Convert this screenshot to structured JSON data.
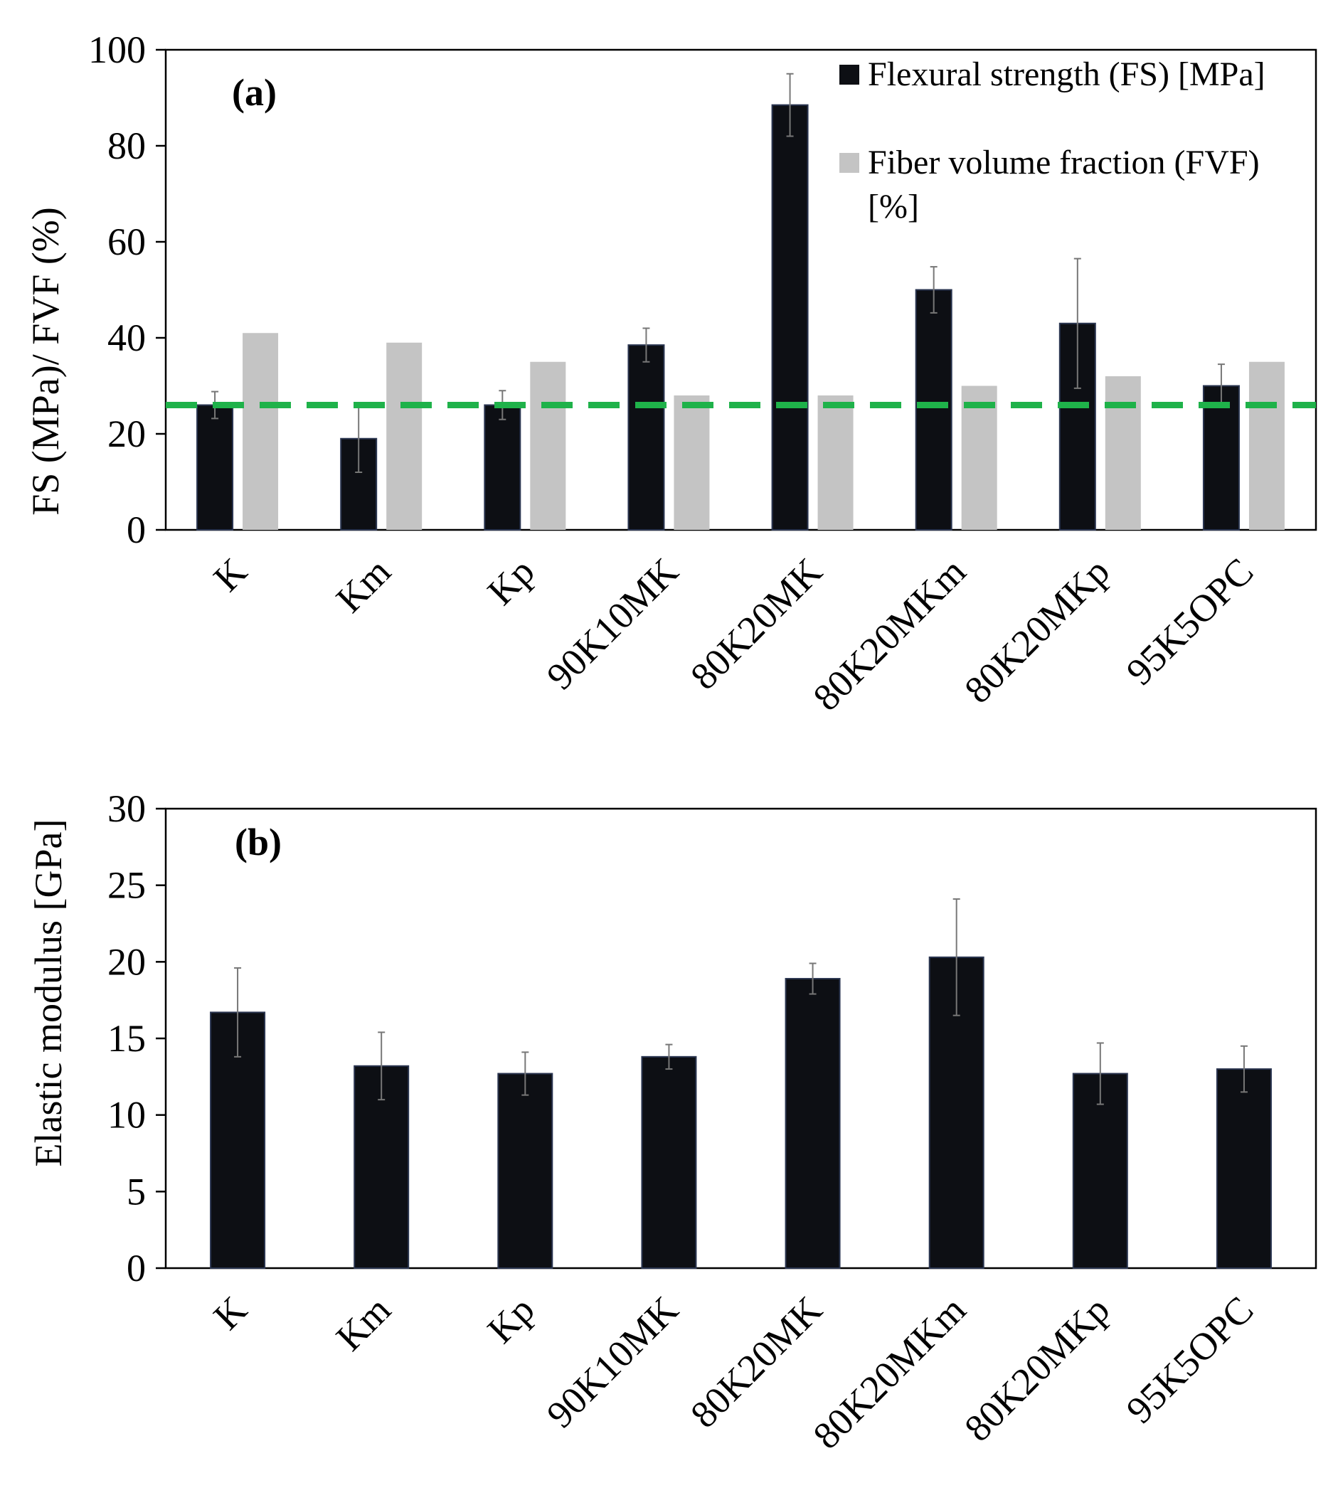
{
  "colors": {
    "fs_bar": "#0d0f14",
    "fvf_bar": "#c4c4c4",
    "threshold_line": "#1fb24a",
    "axis": "#000000",
    "error_bar": "#777777"
  },
  "chart_data": [
    {
      "type": "bar",
      "panel_label": "(a)",
      "ylabel": "FS (MPa)/ FVF (%)",
      "ylim": [
        0,
        100
      ],
      "yticks": [
        0,
        20,
        40,
        60,
        80,
        100
      ],
      "categories": [
        "K",
        "Km",
        "Kp",
        "90K10MK",
        "80K20MK",
        "80K20MKm",
        "80K20MKp",
        "95K5OPC"
      ],
      "series": [
        {
          "name": "Flexural strength (FS) [MPa]",
          "values": [
            26,
            19,
            26,
            38.5,
            88.5,
            50,
            43,
            30
          ],
          "errors": [
            2.8,
            7.0,
            3.0,
            3.5,
            6.5,
            4.8,
            13.5,
            4.5
          ]
        },
        {
          "name": "Fiber volume fraction (FVF) [%]",
          "name_line1": "Fiber volume fraction (FVF)",
          "name_line2": "[%]",
          "values": [
            41,
            39,
            35,
            28,
            28,
            30,
            32,
            35
          ]
        }
      ],
      "reference_line": 26,
      "legend_position": "top-right"
    },
    {
      "type": "bar",
      "panel_label": "(b)",
      "ylabel": "Elastic modulus [GPa]",
      "ylim": [
        0,
        30
      ],
      "yticks": [
        0,
        5,
        10,
        15,
        20,
        25,
        30
      ],
      "categories": [
        "K",
        "Km",
        "Kp",
        "90K10MK",
        "80K20MK",
        "80K20MKm",
        "80K20MKp",
        "95K5OPC"
      ],
      "series": [
        {
          "name": "Elastic modulus",
          "values": [
            16.7,
            13.2,
            12.7,
            13.8,
            18.9,
            20.3,
            12.7,
            13.0
          ],
          "errors": [
            2.9,
            2.2,
            1.4,
            0.8,
            1.0,
            3.8,
            2.0,
            1.5
          ]
        }
      ]
    }
  ]
}
